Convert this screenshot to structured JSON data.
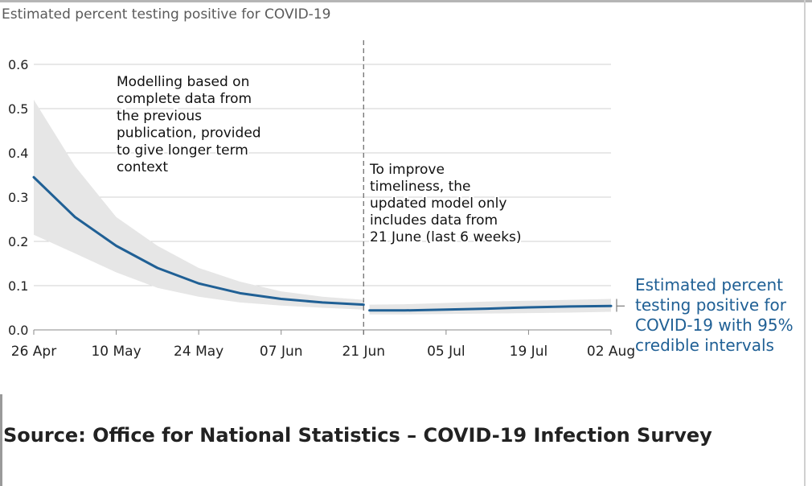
{
  "chart_data": {
    "type": "line",
    "title": "Estimated percent testing positive for COVID-19",
    "ylim": [
      0,
      0.6
    ],
    "yticks": [
      "0.0",
      "0.1",
      "0.2",
      "0.3",
      "0.4",
      "0.5",
      "0.6"
    ],
    "ytick_values": [
      0,
      0.1,
      0.2,
      0.3,
      0.4,
      0.5,
      0.6
    ],
    "xticks": [
      "26 Apr",
      "10 May",
      "24 May",
      "07 Jun",
      "21 Jun",
      "05 Jul",
      "19 Jul",
      "02 Aug"
    ],
    "x_range_days": [
      0,
      98
    ],
    "grid": true,
    "series": [
      {
        "name": "Estimated percent testing positive for COVID-19 with 95% credible intervals",
        "segment": "previous model",
        "x": [
          0,
          7,
          14,
          21,
          28,
          35,
          42,
          49,
          56
        ],
        "values": [
          0.345,
          0.255,
          0.19,
          0.14,
          0.105,
          0.083,
          0.07,
          0.062,
          0.057
        ],
        "lower": [
          0.215,
          0.173,
          0.13,
          0.095,
          0.075,
          0.062,
          0.055,
          0.05,
          0.046
        ],
        "upper": [
          0.52,
          0.37,
          0.255,
          0.19,
          0.14,
          0.109,
          0.087,
          0.075,
          0.068
        ]
      },
      {
        "name": "Estimated percent testing positive for COVID-19 with 95% credible intervals",
        "segment": "updated model",
        "x": [
          57,
          63,
          70,
          77,
          84,
          91,
          98
        ],
        "values": [
          0.044,
          0.044,
          0.046,
          0.048,
          0.051,
          0.053,
          0.054
        ],
        "lower": [
          0.035,
          0.035,
          0.036,
          0.037,
          0.038,
          0.039,
          0.041
        ],
        "upper": [
          0.057,
          0.058,
          0.061,
          0.064,
          0.066,
          0.068,
          0.07
        ]
      }
    ],
    "divider": {
      "x": 56
    },
    "annotations": {
      "left": [
        "Modelling based on",
        "complete data from",
        "the previous",
        "publication, provided",
        "to give longer term",
        "context"
      ],
      "right": [
        "To improve",
        "timeliness, the",
        "updated model only",
        "includes data from",
        "21 June (last 6 weeks)"
      ]
    },
    "legend_label": [
      "Estimated percent",
      "testing positive for",
      "COVID-19 with 95%",
      "credible intervals"
    ]
  },
  "colors": {
    "line": "#206095",
    "band": "#e6e6e6",
    "grid": "#d0d0d0",
    "axis_text": "#222222",
    "title_text": "#5a5a5a"
  },
  "source": "Source: Office for National Statistics – COVID-19 Infection Survey"
}
